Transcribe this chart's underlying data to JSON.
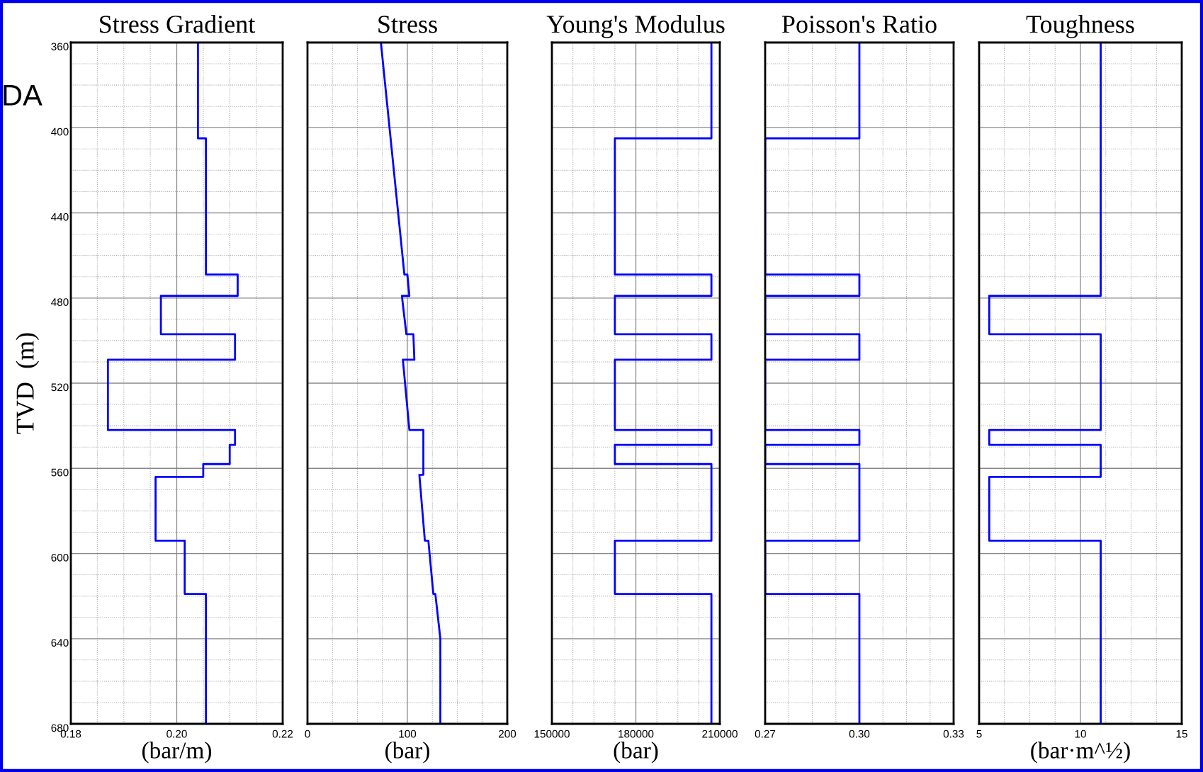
{
  "chart_data": [
    {
      "type": "line",
      "orientation": "horizontal",
      "title": "Stress Gradient",
      "xlabel": "(bar/m)",
      "ylabel": "TVD  (m)",
      "annotations": [
        "DA"
      ],
      "grid": true,
      "series": [
        {
          "color": "#0000ff",
          "x": [
            360,
            405,
            405,
            469,
            469,
            479,
            479,
            497,
            497,
            509,
            509,
            542,
            542,
            549,
            549,
            558,
            558,
            564,
            564,
            594,
            594,
            619,
            619,
            680
          ],
          "values": [
            0.204,
            0.204,
            0.2055,
            0.2055,
            0.2115,
            0.2115,
            0.197,
            0.197,
            0.211,
            0.211,
            0.187,
            0.187,
            0.211,
            0.211,
            0.21,
            0.21,
            0.205,
            0.205,
            0.196,
            0.196,
            0.2015,
            0.2015,
            0.2055,
            0.2055
          ]
        }
      ],
      "xlim": [
        0.18,
        0.22
      ],
      "xticks": [
        0.18,
        {
          "value": 0.185,
          "label": null
        },
        {
          "value": 0.19,
          "label": null
        },
        {
          "value": 0.195,
          "label": null
        },
        {
          "value": 0.2,
          "label": "0.20"
        },
        {
          "value": 0.205,
          "label": null
        },
        {
          "value": 0.21,
          "label": null
        },
        {
          "value": 0.215,
          "label": null
        },
        0.22
      ],
      "ylim": [
        680,
        360
      ],
      "yticks": [
        360,
        {
          "value": 370,
          "label": null
        },
        {
          "value": 380,
          "label": null
        },
        {
          "value": 390,
          "label": null
        },
        400,
        {
          "value": 410,
          "label": null
        },
        {
          "value": 420,
          "label": null
        },
        {
          "value": 430,
          "label": null
        },
        440,
        {
          "value": 450,
          "label": null
        },
        {
          "value": 460,
          "label": null
        },
        {
          "value": 470,
          "label": null
        },
        480,
        {
          "value": 490,
          "label": null
        },
        {
          "value": 500,
          "label": null
        },
        {
          "value": 510,
          "label": null
        },
        520,
        {
          "value": 530,
          "label": null
        },
        {
          "value": 540,
          "label": null
        },
        {
          "value": 550,
          "label": null
        },
        560,
        {
          "value": 570,
          "label": null
        },
        {
          "value": 580,
          "label": null
        },
        {
          "value": 590,
          "label": null
        },
        600,
        {
          "value": 610,
          "label": null
        },
        {
          "value": 620,
          "label": null
        },
        {
          "value": 630,
          "label": null
        },
        640,
        {
          "value": 650,
          "label": null
        },
        {
          "value": 660,
          "label": null
        },
        {
          "value": 670,
          "label": null
        },
        680
      ]
    },
    {
      "type": "line",
      "orientation": "horizontal",
      "title": "Stress",
      "xlabel": "(bar)",
      "grid": true,
      "tick_labels": "x",
      "series": [
        {
          "color": "#0000ff",
          "x": [
            360,
            469,
            469,
            479,
            479,
            497,
            497,
            509,
            509,
            542,
            542,
            563,
            563,
            594,
            594,
            619,
            619,
            640,
            680
          ],
          "values": [
            73.5,
            97,
            100,
            102,
            94.5,
            99,
            106,
            107,
            95.5,
            102,
            116,
            116,
            112,
            117.5,
            121,
            126,
            128,
            133,
            133
          ]
        }
      ],
      "xlim": [
        0,
        200
      ],
      "xticks": [
        0,
        {
          "value": 25,
          "label": null
        },
        {
          "value": 50,
          "label": null
        },
        {
          "value": 75,
          "label": null
        },
        100,
        {
          "value": 125,
          "label": null
        },
        {
          "value": 150,
          "label": null
        },
        {
          "value": 175,
          "label": null
        },
        200
      ],
      "ylim": [
        680,
        360
      ],
      "yticks": [
        360,
        {
          "value": 370,
          "label": null
        },
        {
          "value": 380,
          "label": null
        },
        {
          "value": 390,
          "label": null
        },
        400,
        {
          "value": 410,
          "label": null
        },
        {
          "value": 420,
          "label": null
        },
        {
          "value": 430,
          "label": null
        },
        440,
        {
          "value": 450,
          "label": null
        },
        {
          "value": 460,
          "label": null
        },
        {
          "value": 470,
          "label": null
        },
        480,
        {
          "value": 490,
          "label": null
        },
        {
          "value": 500,
          "label": null
        },
        {
          "value": 510,
          "label": null
        },
        520,
        {
          "value": 530,
          "label": null
        },
        {
          "value": 540,
          "label": null
        },
        {
          "value": 550,
          "label": null
        },
        560,
        {
          "value": 570,
          "label": null
        },
        {
          "value": 580,
          "label": null
        },
        {
          "value": 590,
          "label": null
        },
        600,
        {
          "value": 610,
          "label": null
        },
        {
          "value": 620,
          "label": null
        },
        {
          "value": 630,
          "label": null
        },
        640,
        {
          "value": 650,
          "label": null
        },
        {
          "value": 660,
          "label": null
        },
        {
          "value": 670,
          "label": null
        },
        680
      ]
    },
    {
      "type": "line",
      "orientation": "horizontal",
      "title": "Young's Modulus",
      "xlabel": "(bar)",
      "grid": true,
      "tick_labels": "x",
      "series": [
        {
          "color": "#0000ff",
          "x": [
            360,
            405,
            405,
            469,
            469,
            479,
            479,
            497,
            497,
            509,
            509,
            542,
            542,
            549,
            549,
            558,
            558,
            594,
            594,
            619,
            619,
            680
          ],
          "values": [
            207000,
            207000,
            172500,
            172500,
            207000,
            207000,
            172500,
            172500,
            207000,
            207000,
            172500,
            172500,
            207000,
            207000,
            172500,
            172500,
            207000,
            207000,
            172500,
            172500,
            207000,
            207000
          ]
        }
      ],
      "xlim": [
        150000,
        210000
      ],
      "xticks": [
        150000,
        {
          "value": 157500,
          "label": null
        },
        {
          "value": 165000,
          "label": null
        },
        {
          "value": 172500,
          "label": null
        },
        180000,
        {
          "value": 187500,
          "label": null
        },
        {
          "value": 195000,
          "label": null
        },
        {
          "value": 202500,
          "label": null
        },
        210000
      ],
      "ylim": [
        680,
        360
      ],
      "yticks": [
        360,
        {
          "value": 370,
          "label": null
        },
        {
          "value": 380,
          "label": null
        },
        {
          "value": 390,
          "label": null
        },
        400,
        {
          "value": 410,
          "label": null
        },
        {
          "value": 420,
          "label": null
        },
        {
          "value": 430,
          "label": null
        },
        440,
        {
          "value": 450,
          "label": null
        },
        {
          "value": 460,
          "label": null
        },
        {
          "value": 470,
          "label": null
        },
        480,
        {
          "value": 490,
          "label": null
        },
        {
          "value": 500,
          "label": null
        },
        {
          "value": 510,
          "label": null
        },
        520,
        {
          "value": 530,
          "label": null
        },
        {
          "value": 540,
          "label": null
        },
        {
          "value": 550,
          "label": null
        },
        560,
        {
          "value": 570,
          "label": null
        },
        {
          "value": 580,
          "label": null
        },
        {
          "value": 590,
          "label": null
        },
        600,
        {
          "value": 610,
          "label": null
        },
        {
          "value": 620,
          "label": null
        },
        {
          "value": 630,
          "label": null
        },
        640,
        {
          "value": 650,
          "label": null
        },
        {
          "value": 660,
          "label": null
        },
        {
          "value": 670,
          "label": null
        },
        680
      ]
    },
    {
      "type": "line",
      "orientation": "horizontal",
      "title": "Poisson's Ratio",
      "grid": true,
      "tick_labels": "x",
      "series": [
        {
          "color": "#0000ff",
          "x": [
            360,
            405,
            405,
            469,
            469,
            479,
            479,
            497,
            497,
            509,
            509,
            542,
            542,
            549,
            549,
            558,
            558,
            594,
            594,
            619,
            619,
            680
          ],
          "values": [
            0.3,
            0.3,
            0.27,
            0.27,
            0.3,
            0.3,
            0.27,
            0.27,
            0.3,
            0.3,
            0.27,
            0.27,
            0.3,
            0.3,
            0.27,
            0.27,
            0.3,
            0.3,
            0.27,
            0.27,
            0.3,
            0.3
          ]
        }
      ],
      "xlim": [
        0.27,
        0.33
      ],
      "xticks": [
        0.27,
        {
          "value": 0.2775,
          "label": null
        },
        {
          "value": 0.285,
          "label": null
        },
        {
          "value": 0.2925,
          "label": null
        },
        {
          "value": 0.3,
          "label": "0.30"
        },
        {
          "value": 0.3075,
          "label": null
        },
        {
          "value": 0.315,
          "label": null
        },
        {
          "value": 0.3225,
          "label": null
        },
        0.33
      ],
      "ylim": [
        680,
        360
      ],
      "yticks": [
        360,
        {
          "value": 370,
          "label": null
        },
        {
          "value": 380,
          "label": null
        },
        {
          "value": 390,
          "label": null
        },
        400,
        {
          "value": 410,
          "label": null
        },
        {
          "value": 420,
          "label": null
        },
        {
          "value": 430,
          "label": null
        },
        440,
        {
          "value": 450,
          "label": null
        },
        {
          "value": 460,
          "label": null
        },
        {
          "value": 470,
          "label": null
        },
        480,
        {
          "value": 490,
          "label": null
        },
        {
          "value": 500,
          "label": null
        },
        {
          "value": 510,
          "label": null
        },
        520,
        {
          "value": 530,
          "label": null
        },
        {
          "value": 540,
          "label": null
        },
        {
          "value": 550,
          "label": null
        },
        560,
        {
          "value": 570,
          "label": null
        },
        {
          "value": 580,
          "label": null
        },
        {
          "value": 590,
          "label": null
        },
        600,
        {
          "value": 610,
          "label": null
        },
        {
          "value": 620,
          "label": null
        },
        {
          "value": 630,
          "label": null
        },
        640,
        {
          "value": 650,
          "label": null
        },
        {
          "value": 660,
          "label": null
        },
        {
          "value": 670,
          "label": null
        },
        680
      ]
    },
    {
      "type": "line",
      "orientation": "horizontal",
      "title": "Toughness",
      "xlabel": "(bar·m^½)",
      "grid": true,
      "tick_labels": "x",
      "series": [
        {
          "color": "#0000ff",
          "x": [
            360,
            479,
            479,
            497,
            497,
            542,
            542,
            549,
            549,
            564,
            564,
            594,
            594,
            680
          ],
          "values": [
            11,
            11,
            5.5,
            5.5,
            11,
            11,
            5.5,
            5.5,
            11,
            11,
            5.5,
            5.5,
            11,
            11
          ]
        }
      ],
      "xlim": [
        5,
        15
      ],
      "xticks": [
        5,
        {
          "value": 6.25,
          "label": null
        },
        {
          "value": 7.5,
          "label": null
        },
        {
          "value": 8.75,
          "label": null
        },
        10,
        {
          "value": 11.25,
          "label": null
        },
        {
          "value": 12.5,
          "label": null
        },
        {
          "value": 13.75,
          "label": null
        },
        15
      ],
      "ylim": [
        680,
        360
      ],
      "yticks": [
        360,
        {
          "value": 370,
          "label": null
        },
        {
          "value": 380,
          "label": null
        },
        {
          "value": 390,
          "label": null
        },
        400,
        {
          "value": 410,
          "label": null
        },
        {
          "value": 420,
          "label": null
        },
        {
          "value": 430,
          "label": null
        },
        440,
        {
          "value": 450,
          "label": null
        },
        {
          "value": 460,
          "label": null
        },
        {
          "value": 470,
          "label": null
        },
        480,
        {
          "value": 490,
          "label": null
        },
        {
          "value": 500,
          "label": null
        },
        {
          "value": 510,
          "label": null
        },
        520,
        {
          "value": 530,
          "label": null
        },
        {
          "value": 540,
          "label": null
        },
        {
          "value": 550,
          "label": null
        },
        560,
        {
          "value": 570,
          "label": null
        },
        {
          "value": 580,
          "label": null
        },
        {
          "value": 590,
          "label": null
        },
        600,
        {
          "value": 610,
          "label": null
        },
        {
          "value": 620,
          "label": null
        },
        {
          "value": 630,
          "label": null
        },
        640,
        {
          "value": 650,
          "label": null
        },
        {
          "value": 660,
          "label": null
        },
        {
          "value": 670,
          "label": null
        },
        680
      ]
    }
  ]
}
